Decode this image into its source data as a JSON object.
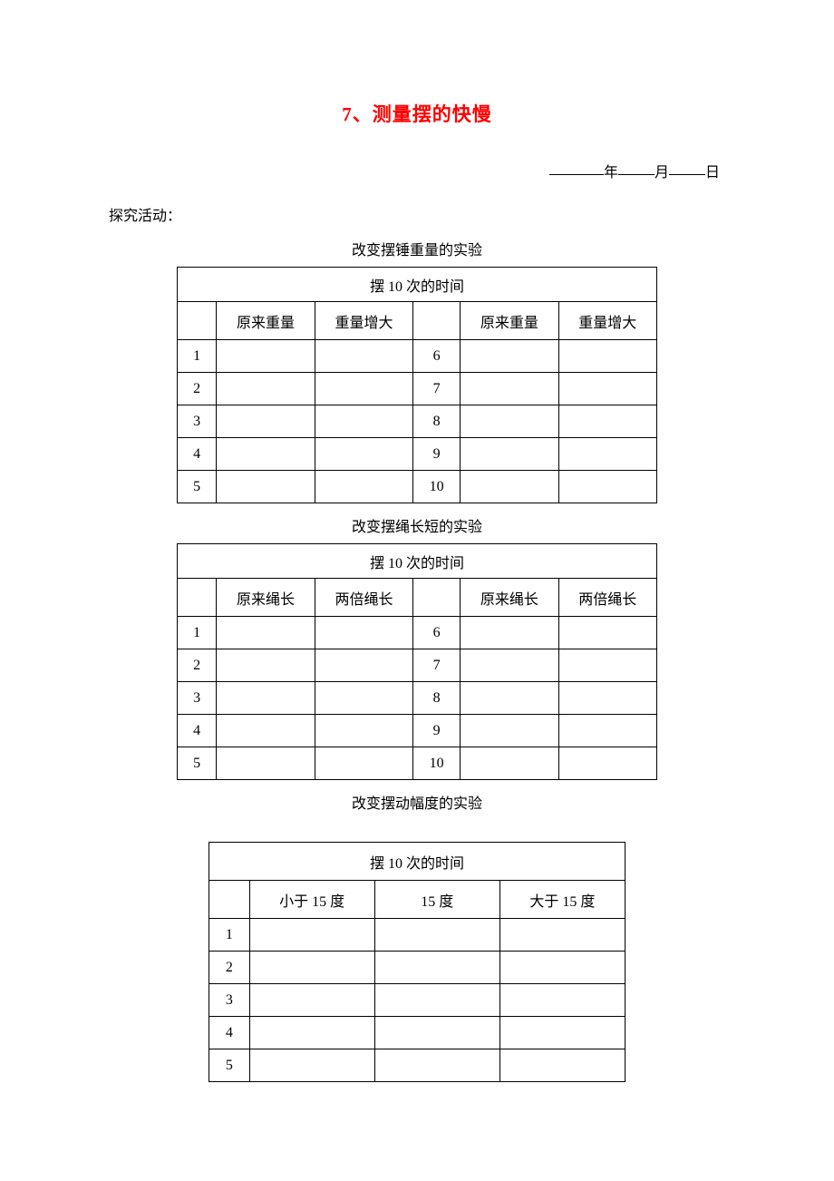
{
  "title_color": "#ff0000",
  "title": "7、测量摆的快慢",
  "date": {
    "year_label": "年",
    "month_label": "月",
    "day_label": "日"
  },
  "section_label": "探究活动：",
  "captions": {
    "weight": "改变摆锤重量的实验",
    "length": "改变摆绳长短的实验",
    "amplitude": "改变摆动幅度的实验"
  },
  "head_merged": "摆 10 次的时间",
  "weight_table": {
    "col_a": "原来重量",
    "col_b": "重量增大",
    "col_c": "原来重量",
    "col_d": "重量增大",
    "left_idx": [
      "1",
      "2",
      "3",
      "4",
      "5"
    ],
    "right_idx": [
      "6",
      "7",
      "8",
      "9",
      "10"
    ]
  },
  "length_table": {
    "col_a": "原来绳长",
    "col_b": "两倍绳长",
    "col_c": "原来绳长",
    "col_d": "两倍绳长",
    "left_idx": [
      "1",
      "2",
      "3",
      "4",
      "5"
    ],
    "right_idx": [
      "6",
      "7",
      "8",
      "9",
      "10"
    ]
  },
  "amplitude_table": {
    "col_a": "小于 15 度",
    "col_b": "15 度",
    "col_c": "大于 15 度",
    "idx": [
      "1",
      "2",
      "3",
      "4",
      "5"
    ]
  }
}
